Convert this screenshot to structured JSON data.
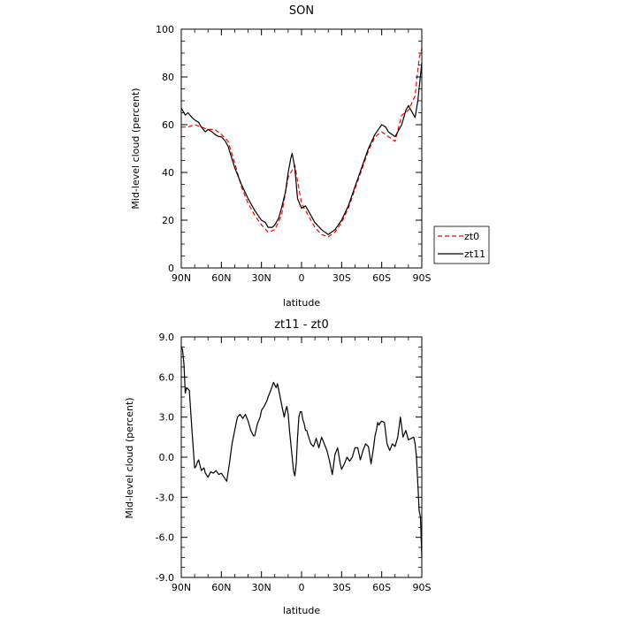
{
  "chart_data": [
    {
      "type": "line",
      "title": "SON",
      "xlabel": "latitude",
      "ylabel": "Mid-level cloud (percent)",
      "xlim": [
        90,
        -90
      ],
      "ylim": [
        0,
        100
      ],
      "x_ticks": [
        90,
        60,
        30,
        0,
        -30,
        -60,
        -90
      ],
      "x_tick_labels": [
        "90N",
        "60N",
        "30N",
        "0",
        "30S",
        "60S",
        "90S"
      ],
      "y_ticks": [
        0,
        20,
        40,
        60,
        80,
        100
      ],
      "y_tick_labels": [
        "0",
        "20",
        "40",
        "60",
        "80",
        "100"
      ],
      "legend_position": "right-bottom",
      "series": [
        {
          "name": "zt0",
          "color": "#ff0000",
          "dash": "dashed",
          "x": [
            90,
            85,
            80,
            75,
            70,
            65,
            60,
            55,
            50,
            45,
            40,
            35,
            30,
            25,
            20,
            15,
            10,
            5,
            0,
            -5,
            -10,
            -15,
            -20,
            -25,
            -30,
            -35,
            -40,
            -45,
            -50,
            -55,
            -60,
            -65,
            -70,
            -75,
            -80,
            -85,
            -88,
            -90
          ],
          "y": [
            59,
            59,
            60,
            59,
            58,
            58,
            56,
            53,
            44,
            34,
            27,
            22,
            18,
            15,
            16,
            22,
            38,
            43,
            27,
            22,
            17,
            14,
            13,
            15,
            19,
            25,
            33,
            41,
            49,
            55,
            57,
            55,
            53,
            64,
            66,
            72,
            88,
            92
          ]
        },
        {
          "name": "zt11",
          "color": "#000000",
          "dash": "solid",
          "x": [
            90,
            87,
            85,
            82,
            80,
            77,
            75,
            72,
            70,
            67,
            65,
            62,
            60,
            57,
            55,
            50,
            45,
            40,
            35,
            30,
            27,
            25,
            22,
            20,
            17,
            15,
            12,
            10,
            8,
            7,
            5,
            3,
            0,
            -3,
            -5,
            -10,
            -15,
            -20,
            -25,
            -30,
            -35,
            -40,
            -45,
            -50,
            -55,
            -60,
            -63,
            -65,
            -70,
            -72,
            -75,
            -78,
            -80,
            -82,
            -85,
            -87,
            -90
          ],
          "y": [
            67,
            64,
            65,
            63,
            62,
            61,
            59,
            57,
            58,
            57,
            56,
            55,
            55,
            53,
            51,
            42,
            35,
            29,
            24,
            20,
            19,
            17,
            17,
            18,
            21,
            25,
            32,
            40,
            46,
            48,
            42,
            29,
            25,
            26,
            24,
            19,
            16,
            14,
            16,
            20,
            26,
            34,
            42,
            50,
            56,
            60,
            59,
            57,
            55,
            57,
            60,
            66,
            68,
            66,
            63,
            70,
            86
          ]
        }
      ]
    },
    {
      "type": "line",
      "title": "zt11 - zt0",
      "xlabel": "latitude",
      "ylabel": "Mid-level cloud (percent)",
      "xlim": [
        90,
        -90
      ],
      "ylim": [
        -9,
        9
      ],
      "x_ticks": [
        90,
        60,
        30,
        0,
        -30,
        -60,
        -90
      ],
      "x_tick_labels": [
        "90N",
        "60N",
        "30N",
        "0",
        "30S",
        "60S",
        "90S"
      ],
      "y_ticks": [
        9,
        6,
        3,
        0,
        -3,
        -6,
        -9
      ],
      "y_tick_labels": [
        "9.0",
        "6.0",
        "3.0",
        "0.0",
        "-3.0",
        "-6.0",
        "-9.0"
      ],
      "series": [
        {
          "color": "#000000",
          "dash": "solid",
          "x": [
            90,
            89,
            88,
            87,
            86,
            84,
            82,
            80,
            79,
            78,
            77,
            75,
            73,
            72,
            70,
            68,
            66,
            64,
            62,
            60,
            58,
            56,
            54,
            52,
            50,
            48,
            46,
            44,
            42,
            40,
            38,
            36,
            35,
            33,
            31,
            30,
            28,
            26,
            25,
            23,
            21,
            19,
            18,
            16,
            15,
            13,
            12,
            11,
            10,
            9,
            8,
            7,
            6,
            5,
            4,
            3,
            2,
            1,
            0,
            -1,
            -2,
            -3,
            -4,
            -5,
            -7,
            -9,
            -11,
            -13,
            -15,
            -17,
            -19,
            -21,
            -23,
            -25,
            -27,
            -29,
            -30,
            -32,
            -34,
            -36,
            -38,
            -40,
            -42,
            -44,
            -46,
            -48,
            -50,
            -52,
            -54,
            -55,
            -56,
            -57,
            -58,
            -59,
            -60,
            -62,
            -64,
            -66,
            -68,
            -70,
            -72,
            -74,
            -76,
            -78,
            -80,
            -82,
            -84,
            -85,
            -86,
            -87,
            -88,
            -89,
            -90
          ],
          "y": [
            8.3,
            8.0,
            7.0,
            4.8,
            5.2,
            5.0,
            2.0,
            -0.8,
            -0.7,
            -0.4,
            -0.2,
            -1.0,
            -0.8,
            -1.2,
            -1.5,
            -1.1,
            -1.2,
            -1.0,
            -1.3,
            -1.2,
            -1.5,
            -1.8,
            -0.5,
            1.0,
            2.0,
            3.0,
            3.2,
            2.9,
            3.2,
            2.7,
            2.0,
            1.6,
            1.6,
            2.5,
            3.0,
            3.5,
            3.8,
            4.2,
            4.5,
            5.0,
            5.6,
            5.2,
            5.5,
            4.5,
            4.0,
            3.0,
            3.5,
            3.8,
            3.2,
            2.0,
            1.0,
            0.0,
            -1.0,
            -1.4,
            -0.5,
            1.5,
            3.0,
            3.4,
            3.4,
            2.8,
            2.5,
            2.0,
            2.0,
            1.6,
            1.0,
            0.8,
            1.4,
            0.7,
            1.5,
            1.0,
            0.5,
            -0.3,
            -1.3,
            0.2,
            0.7,
            -0.5,
            -0.9,
            -0.5,
            0.0,
            -0.3,
            0.0,
            0.7,
            0.7,
            -0.2,
            0.5,
            1.0,
            0.8,
            -0.5,
            0.8,
            1.6,
            2.0,
            2.6,
            2.4,
            2.6,
            2.7,
            2.6,
            1.0,
            0.5,
            1.0,
            0.8,
            1.5,
            3.0,
            1.5,
            2.0,
            1.3,
            1.4,
            1.5,
            1.0,
            0.0,
            -2.0,
            -4.0,
            -4.5,
            -7.5
          ]
        }
      ]
    }
  ]
}
